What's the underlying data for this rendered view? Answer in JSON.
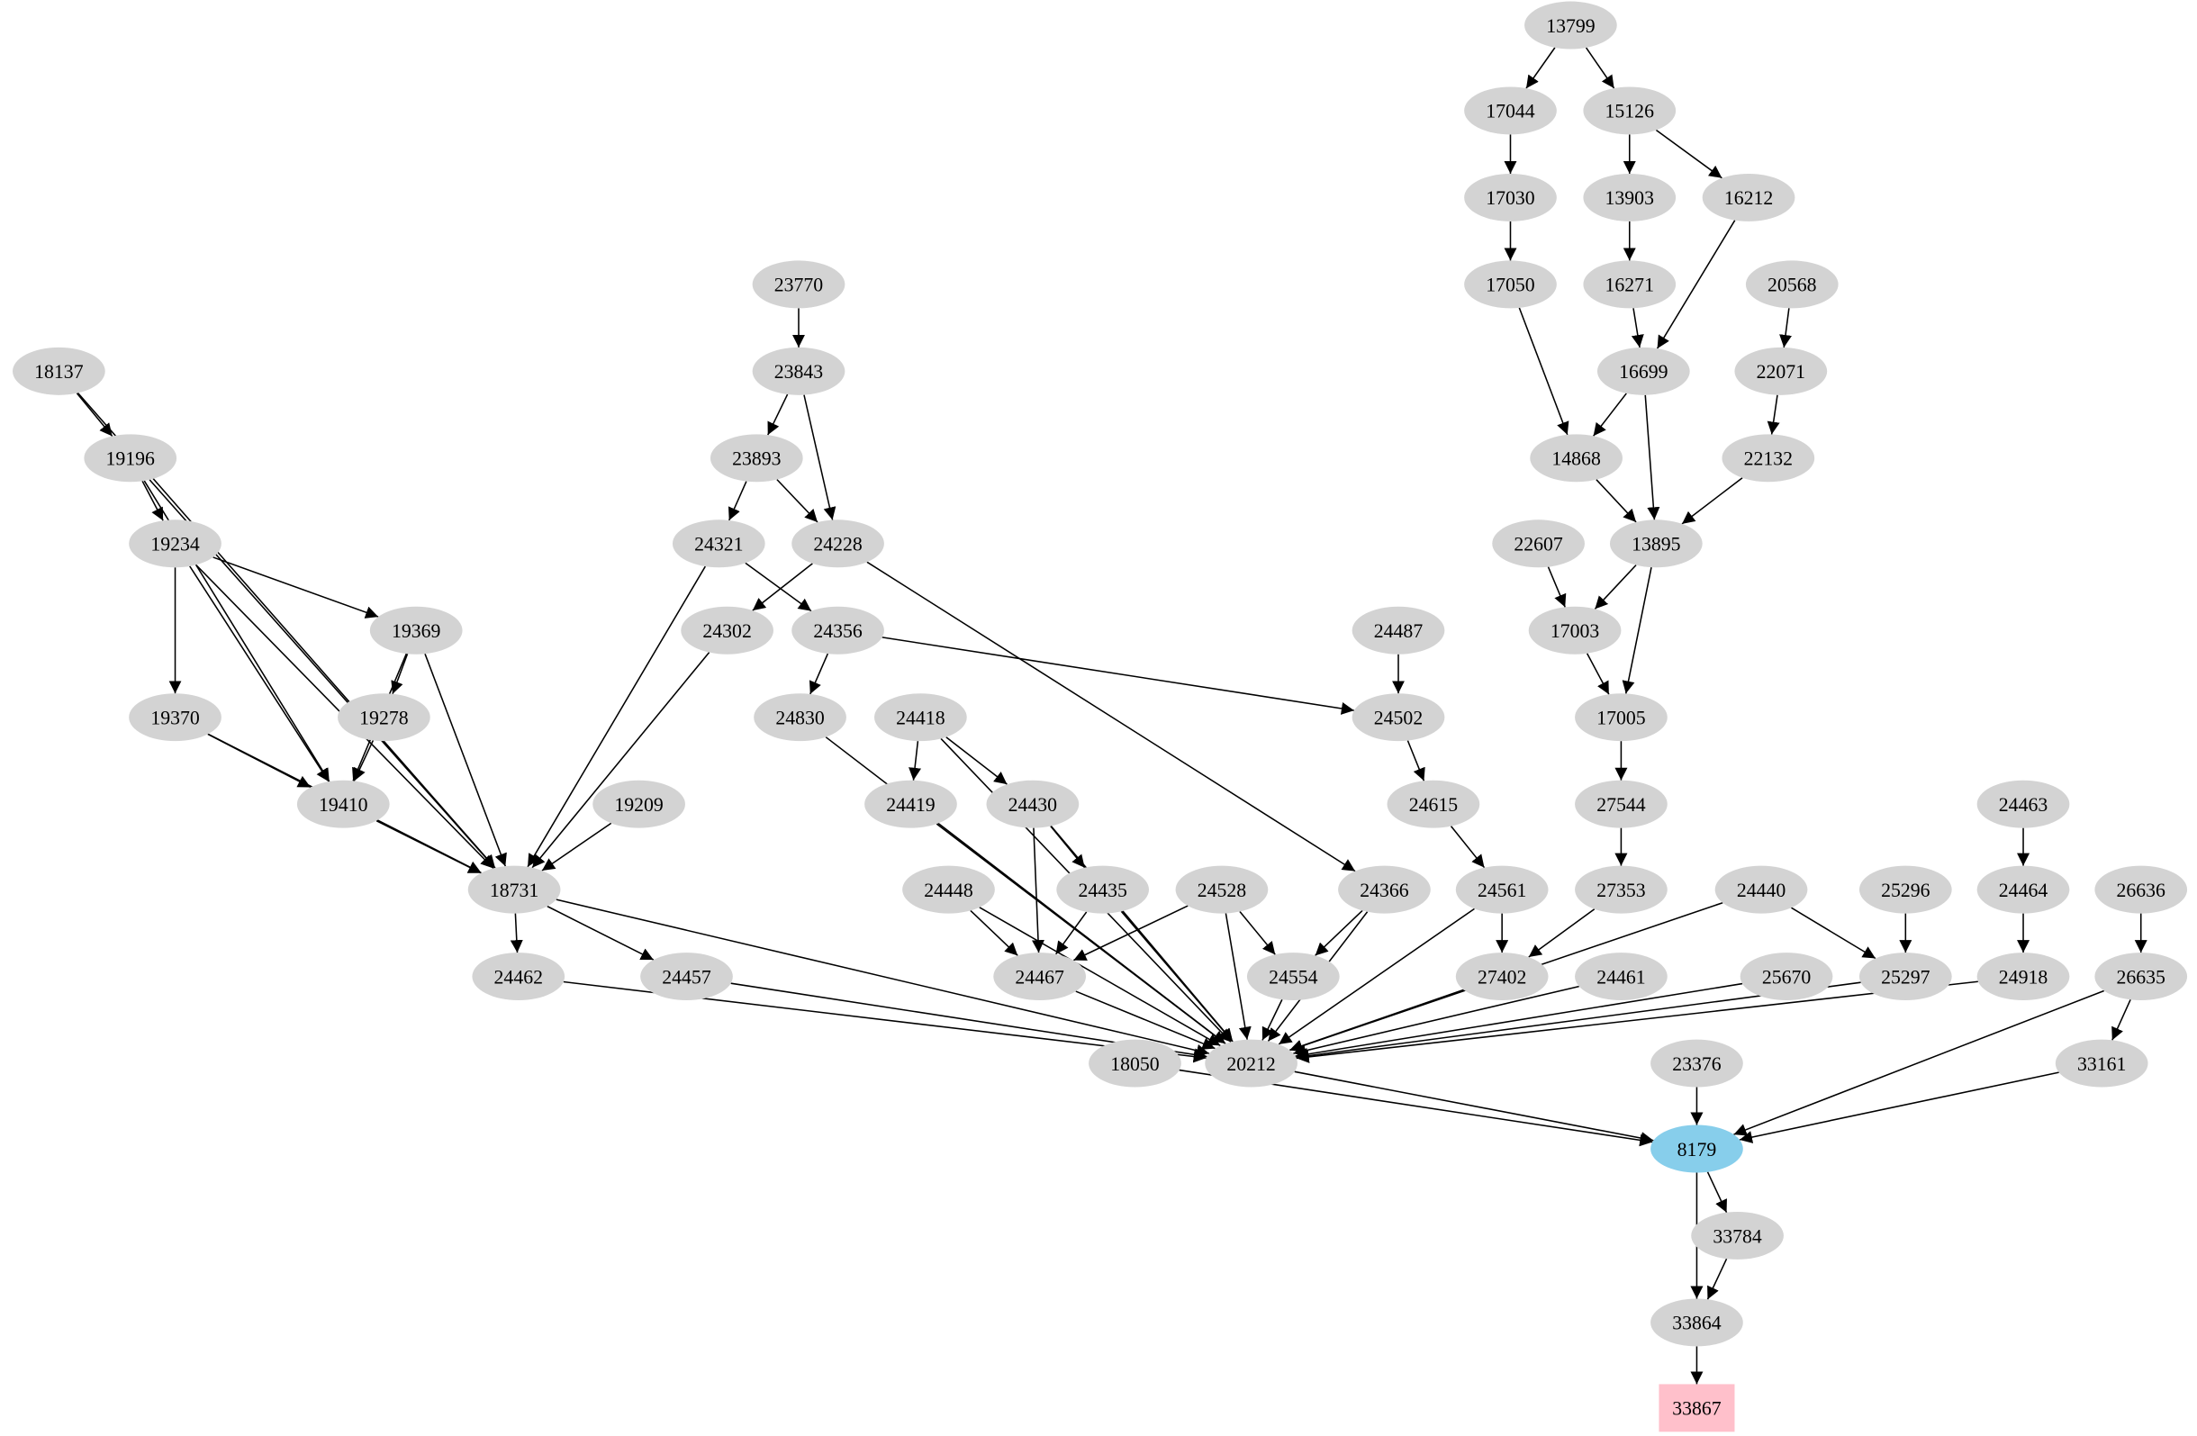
{
  "graph": {
    "directed": true,
    "colors": {
      "default_fill": "#d3d3d3",
      "highlight_fill": "#87ceeb",
      "target_fill": "#ffc0cb",
      "edge": "#000000"
    },
    "nodes": [
      {
        "id": "13799"
      },
      {
        "id": "17044"
      },
      {
        "id": "15126"
      },
      {
        "id": "17030"
      },
      {
        "id": "13903"
      },
      {
        "id": "16212"
      },
      {
        "id": "23770"
      },
      {
        "id": "17050"
      },
      {
        "id": "16271"
      },
      {
        "id": "20568"
      },
      {
        "id": "18137"
      },
      {
        "id": "23843"
      },
      {
        "id": "16699"
      },
      {
        "id": "22071"
      },
      {
        "id": "19196"
      },
      {
        "id": "23893"
      },
      {
        "id": "14868"
      },
      {
        "id": "22132"
      },
      {
        "id": "19234"
      },
      {
        "id": "24321"
      },
      {
        "id": "24228"
      },
      {
        "id": "22607"
      },
      {
        "id": "13895"
      },
      {
        "id": "19369"
      },
      {
        "id": "24302"
      },
      {
        "id": "24356"
      },
      {
        "id": "24487"
      },
      {
        "id": "17003"
      },
      {
        "id": "19370"
      },
      {
        "id": "19278"
      },
      {
        "id": "24830"
      },
      {
        "id": "24418"
      },
      {
        "id": "24502"
      },
      {
        "id": "17005"
      },
      {
        "id": "19410"
      },
      {
        "id": "19209"
      },
      {
        "id": "24419"
      },
      {
        "id": "24430"
      },
      {
        "id": "24615"
      },
      {
        "id": "27544"
      },
      {
        "id": "24463"
      },
      {
        "id": "18731"
      },
      {
        "id": "24448"
      },
      {
        "id": "24435"
      },
      {
        "id": "24528"
      },
      {
        "id": "24366"
      },
      {
        "id": "24561"
      },
      {
        "id": "27353"
      },
      {
        "id": "24440"
      },
      {
        "id": "25296"
      },
      {
        "id": "24464"
      },
      {
        "id": "26636"
      },
      {
        "id": "24462"
      },
      {
        "id": "24457"
      },
      {
        "id": "24467"
      },
      {
        "id": "24554"
      },
      {
        "id": "27402"
      },
      {
        "id": "24461"
      },
      {
        "id": "25670"
      },
      {
        "id": "25297"
      },
      {
        "id": "24918"
      },
      {
        "id": "26635"
      },
      {
        "id": "18050"
      },
      {
        "id": "20212"
      },
      {
        "id": "23376"
      },
      {
        "id": "33161"
      },
      {
        "id": "8179",
        "style": "highlight"
      },
      {
        "id": "33784"
      },
      {
        "id": "33864"
      },
      {
        "id": "33867",
        "style": "target",
        "shape": "box"
      }
    ],
    "edges": [
      [
        "13799",
        "17044"
      ],
      [
        "13799",
        "15126"
      ],
      [
        "17044",
        "17030"
      ],
      [
        "15126",
        "13903"
      ],
      [
        "15126",
        "16212"
      ],
      [
        "17030",
        "17050"
      ],
      [
        "13903",
        "16271"
      ],
      [
        "16212",
        "16699"
      ],
      [
        "16271",
        "16699"
      ],
      [
        "20568",
        "22071"
      ],
      [
        "17050",
        "14868"
      ],
      [
        "16699",
        "14868"
      ],
      [
        "16699",
        "13895"
      ],
      [
        "22071",
        "22132"
      ],
      [
        "14868",
        "13895"
      ],
      [
        "22132",
        "13895"
      ],
      [
        "22607",
        "17003"
      ],
      [
        "13895",
        "17003"
      ],
      [
        "13895",
        "17005"
      ],
      [
        "17003",
        "17005"
      ],
      [
        "17005",
        "27544"
      ],
      [
        "27544",
        "27353"
      ],
      [
        "27353",
        "27402"
      ],
      [
        "23770",
        "23843"
      ],
      [
        "23843",
        "23893"
      ],
      [
        "23843",
        "24228"
      ],
      [
        "23893",
        "24321"
      ],
      [
        "23893",
        "24228"
      ],
      [
        "24321",
        "24356"
      ],
      [
        "24321",
        "18731"
      ],
      [
        "24228",
        "24302"
      ],
      [
        "24228",
        "24366"
      ],
      [
        "24302",
        "18731"
      ],
      [
        "24356",
        "24830"
      ],
      [
        "24356",
        "24502"
      ],
      [
        "24487",
        "24502"
      ],
      [
        "24502",
        "24615"
      ],
      [
        "24615",
        "24561"
      ],
      [
        "24561",
        "27402"
      ],
      [
        "24561",
        "20212"
      ],
      [
        "18137",
        "19196"
      ],
      [
        "18137",
        "18731"
      ],
      [
        "19196",
        "19234"
      ],
      [
        "19196",
        "18731"
      ],
      [
        "19196",
        "19410"
      ],
      [
        "19234",
        "19369"
      ],
      [
        "19234",
        "19370"
      ],
      [
        "19234",
        "19410"
      ],
      [
        "19234",
        "18731"
      ],
      [
        "19369",
        "19278"
      ],
      [
        "19369",
        "19410"
      ],
      [
        "19369",
        "18731"
      ],
      [
        "19370",
        "19410"
      ],
      [
        "19370",
        "18731"
      ],
      [
        "19278",
        "19410"
      ],
      [
        "19410",
        "18731"
      ],
      [
        "19209",
        "18731"
      ],
      [
        "18731",
        "24462"
      ],
      [
        "18731",
        "24457"
      ],
      [
        "18731",
        "20212"
      ],
      [
        "24462",
        "20212"
      ],
      [
        "24457",
        "20212"
      ],
      [
        "24830",
        "20212"
      ],
      [
        "24418",
        "24419"
      ],
      [
        "24418",
        "24430"
      ],
      [
        "24418",
        "20212"
      ],
      [
        "24419",
        "20212"
      ],
      [
        "24430",
        "24435"
      ],
      [
        "24430",
        "24467"
      ],
      [
        "24430",
        "20212"
      ],
      [
        "24448",
        "24467"
      ],
      [
        "24448",
        "20212"
      ],
      [
        "24435",
        "24467"
      ],
      [
        "24435",
        "20212"
      ],
      [
        "24528",
        "24467"
      ],
      [
        "24528",
        "24554"
      ],
      [
        "24528",
        "20212"
      ],
      [
        "24366",
        "24554"
      ],
      [
        "24366",
        "20212"
      ],
      [
        "24554",
        "20212"
      ],
      [
        "24467",
        "20212"
      ],
      [
        "27402",
        "20212"
      ],
      [
        "24461",
        "20212"
      ],
      [
        "24440",
        "20212"
      ],
      [
        "24440",
        "25297"
      ],
      [
        "25296",
        "25297"
      ],
      [
        "25670",
        "20212"
      ],
      [
        "25297",
        "20212"
      ],
      [
        "24463",
        "24464"
      ],
      [
        "24464",
        "24918"
      ],
      [
        "24918",
        "20212"
      ],
      [
        "26636",
        "26635"
      ],
      [
        "26635",
        "33161"
      ],
      [
        "26635",
        "8179"
      ],
      [
        "33161",
        "8179"
      ],
      [
        "20212",
        "8179"
      ],
      [
        "18050",
        "8179"
      ],
      [
        "23376",
        "8179"
      ],
      [
        "8179",
        "33784"
      ],
      [
        "8179",
        "33864"
      ],
      [
        "33784",
        "33864"
      ],
      [
        "33864",
        "33867"
      ]
    ]
  }
}
